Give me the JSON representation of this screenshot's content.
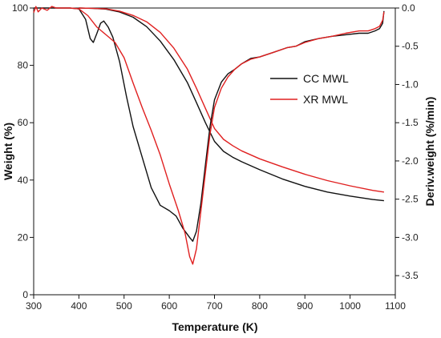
{
  "chart_data": {
    "type": "line",
    "xlabel": "Temperature (K)",
    "ylabel_left": "Weight (%)",
    "ylabel_right": "Deriv.weight (%/min)",
    "xlim": [
      300,
      1100
    ],
    "ylim_left": [
      0,
      100
    ],
    "ylim_right": [
      -3.75,
      0
    ],
    "xticks": [
      300,
      400,
      500,
      600,
      700,
      800,
      900,
      1000,
      1100
    ],
    "yticks_left": [
      0,
      20,
      40,
      60,
      80,
      100
    ],
    "yticks_right": [
      -3.5,
      -3.0,
      -2.5,
      -2.0,
      -1.5,
      -1.0,
      -0.5,
      0.0
    ],
    "ytick_labels_right": [
      "-3.5",
      "-3.0",
      "-2.5",
      "-2.0",
      "-1.5",
      "-1.0",
      "-0.5",
      "0.0"
    ],
    "grid": false,
    "legend_position": "upper-right",
    "series": [
      {
        "name": "CC MWL",
        "color": "#111111",
        "axis": "left",
        "kind": "weight",
        "points": [
          [
            400,
            100
          ],
          [
            430,
            99.9
          ],
          [
            460,
            99.6
          ],
          [
            490,
            98.6
          ],
          [
            520,
            96.8
          ],
          [
            550,
            93.5
          ],
          [
            580,
            88.5
          ],
          [
            610,
            82
          ],
          [
            640,
            74
          ],
          [
            660,
            67
          ],
          [
            680,
            60
          ],
          [
            700,
            53.5
          ],
          [
            720,
            50
          ],
          [
            740,
            48
          ],
          [
            760,
            46.4
          ],
          [
            800,
            43.6
          ],
          [
            850,
            40.4
          ],
          [
            900,
            37.8
          ],
          [
            950,
            35.8
          ],
          [
            1000,
            34.4
          ],
          [
            1050,
            33.2
          ],
          [
            1075,
            32.8
          ]
        ]
      },
      {
        "name": "XR MWL",
        "color": "#e02020",
        "axis": "left",
        "kind": "weight",
        "points": [
          [
            400,
            100
          ],
          [
            430,
            99.9
          ],
          [
            460,
            99.7
          ],
          [
            490,
            98.9
          ],
          [
            520,
            97.4
          ],
          [
            550,
            95.2
          ],
          [
            580,
            91.5
          ],
          [
            610,
            86
          ],
          [
            640,
            78.7
          ],
          [
            660,
            72
          ],
          [
            680,
            65
          ],
          [
            700,
            58
          ],
          [
            720,
            54.2
          ],
          [
            740,
            52
          ],
          [
            760,
            50.2
          ],
          [
            800,
            47.4
          ],
          [
            850,
            44.6
          ],
          [
            900,
            42
          ],
          [
            950,
            39.8
          ],
          [
            1000,
            38
          ],
          [
            1050,
            36.4
          ],
          [
            1075,
            35.8
          ]
        ]
      },
      {
        "name": "",
        "color": "#111111",
        "axis": "right",
        "kind": "derivative",
        "points": [
          [
            300,
            0
          ],
          [
            320,
            0
          ],
          [
            350,
            0
          ],
          [
            380,
            0
          ],
          [
            400,
            -0.01
          ],
          [
            415,
            -0.15
          ],
          [
            425,
            -0.4
          ],
          [
            432,
            -0.45
          ],
          [
            440,
            -0.33
          ],
          [
            448,
            -0.2
          ],
          [
            455,
            -0.17
          ],
          [
            465,
            -0.25
          ],
          [
            475,
            -0.38
          ],
          [
            490,
            -0.7
          ],
          [
            505,
            -1.15
          ],
          [
            520,
            -1.55
          ],
          [
            540,
            -1.95
          ],
          [
            560,
            -2.35
          ],
          [
            580,
            -2.58
          ],
          [
            600,
            -2.65
          ],
          [
            615,
            -2.72
          ],
          [
            630,
            -2.88
          ],
          [
            645,
            -3.0
          ],
          [
            652,
            -3.05
          ],
          [
            660,
            -2.92
          ],
          [
            670,
            -2.55
          ],
          [
            680,
            -2.05
          ],
          [
            690,
            -1.55
          ],
          [
            700,
            -1.2
          ],
          [
            715,
            -0.97
          ],
          [
            730,
            -0.86
          ],
          [
            745,
            -0.8
          ],
          [
            760,
            -0.73
          ],
          [
            780,
            -0.66
          ],
          [
            800,
            -0.64
          ],
          [
            830,
            -0.58
          ],
          [
            860,
            -0.52
          ],
          [
            880,
            -0.5
          ],
          [
            900,
            -0.44
          ],
          [
            930,
            -0.4
          ],
          [
            960,
            -0.37
          ],
          [
            990,
            -0.35
          ],
          [
            1020,
            -0.33
          ],
          [
            1040,
            -0.33
          ],
          [
            1055,
            -0.3
          ],
          [
            1065,
            -0.27
          ],
          [
            1072,
            -0.2
          ],
          [
            1075,
            -0.04
          ]
        ]
      },
      {
        "name": "",
        "color": "#e02020",
        "axis": "right",
        "kind": "derivative",
        "points": [
          [
            300,
            -0.06
          ],
          [
            305,
            0.02
          ],
          [
            310,
            -0.05
          ],
          [
            318,
            0
          ],
          [
            330,
            -0.03
          ],
          [
            340,
            0.02
          ],
          [
            350,
            0
          ],
          [
            380,
            0
          ],
          [
            400,
            -0.01
          ],
          [
            420,
            -0.1
          ],
          [
            440,
            -0.25
          ],
          [
            460,
            -0.35
          ],
          [
            480,
            -0.45
          ],
          [
            500,
            -0.65
          ],
          [
            520,
            -0.98
          ],
          [
            540,
            -1.3
          ],
          [
            560,
            -1.6
          ],
          [
            580,
            -1.92
          ],
          [
            600,
            -2.3
          ],
          [
            620,
            -2.65
          ],
          [
            635,
            -2.95
          ],
          [
            645,
            -3.25
          ],
          [
            652,
            -3.35
          ],
          [
            660,
            -3.15
          ],
          [
            668,
            -2.75
          ],
          [
            678,
            -2.25
          ],
          [
            690,
            -1.65
          ],
          [
            700,
            -1.3
          ],
          [
            715,
            -1.05
          ],
          [
            730,
            -0.9
          ],
          [
            745,
            -0.8
          ],
          [
            760,
            -0.73
          ],
          [
            780,
            -0.67
          ],
          [
            800,
            -0.64
          ],
          [
            830,
            -0.58
          ],
          [
            860,
            -0.52
          ],
          [
            880,
            -0.5
          ],
          [
            900,
            -0.45
          ],
          [
            930,
            -0.4
          ],
          [
            960,
            -0.37
          ],
          [
            990,
            -0.33
          ],
          [
            1020,
            -0.3
          ],
          [
            1040,
            -0.3
          ],
          [
            1055,
            -0.27
          ],
          [
            1065,
            -0.24
          ],
          [
            1072,
            -0.16
          ],
          [
            1075,
            -0.05
          ]
        ]
      }
    ]
  }
}
